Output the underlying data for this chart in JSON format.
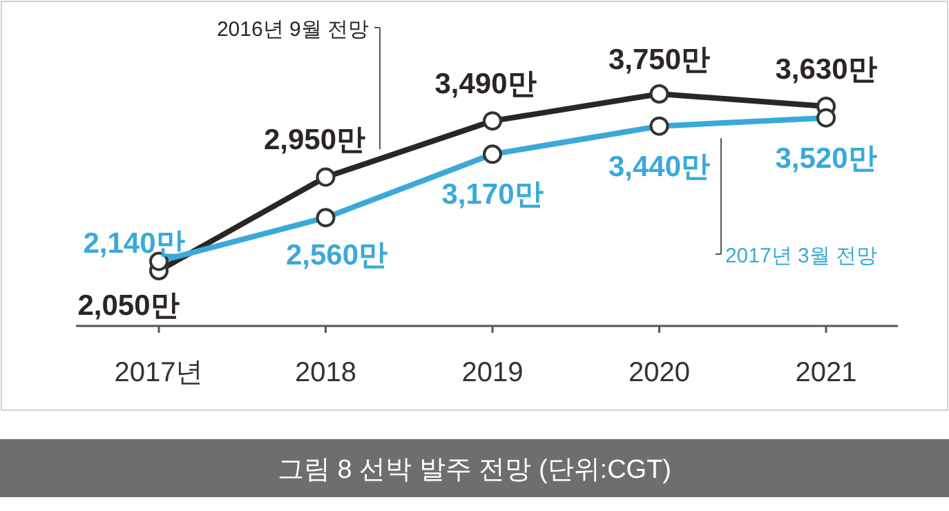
{
  "chart_data": {
    "type": "line",
    "categories": [
      "2017년",
      "2018",
      "2019",
      "2020",
      "2021"
    ],
    "marker": "circle",
    "line_style": "solid",
    "grid": false,
    "series": [
      {
        "name": "2016년 9월 전망",
        "color": "#2b2623",
        "values": [
          2050,
          2950,
          3490,
          3750,
          3630
        ],
        "value_labels": [
          "2,050만",
          "2,950만",
          "3,490만",
          "3,750만",
          "3,630만"
        ]
      },
      {
        "name": "2017년 3월 전망",
        "color": "#3aa9d9",
        "values": [
          2140,
          2560,
          3170,
          3440,
          3520
        ],
        "value_labels": [
          "2,140만",
          "2,560만",
          "3,170만",
          "3,440만",
          "3,520만"
        ]
      }
    ],
    "annotations": [
      "그림 8 선박 발주 전망 (단위:CGT)"
    ]
  }
}
